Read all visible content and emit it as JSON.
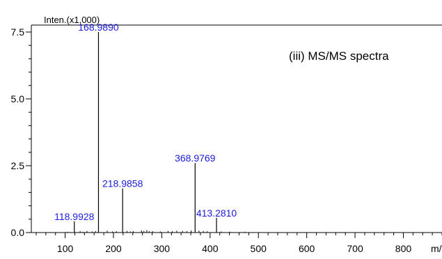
{
  "chart_data": {
    "type": "bar",
    "title": "(iii) MS/MS spectra",
    "ylabel": "Inten.(x1,000)",
    "xlabel": "m/z",
    "xlim": [
      30,
      880
    ],
    "ylim": [
      0,
      7.7
    ],
    "xticks": [
      100,
      200,
      300,
      400,
      500,
      600,
      700,
      800
    ],
    "yticks": [
      {
        "value": 0,
        "label": "0.0"
      },
      {
        "value": 2.5,
        "label": "2.5"
      },
      {
        "value": 5.0,
        "label": "5.0"
      },
      {
        "value": 7.5,
        "label": "7.5"
      }
    ],
    "peaks": [
      {
        "x": 118.9928,
        "y": 0.42,
        "label": "118.9928"
      },
      {
        "x": 168.989,
        "y": 7.5,
        "label": "168.9890"
      },
      {
        "x": 218.9858,
        "y": 1.65,
        "label": "218.9858"
      },
      {
        "x": 368.9769,
        "y": 2.6,
        "label": "368.9769"
      },
      {
        "x": 413.281,
        "y": 0.55,
        "label": "413.2810"
      }
    ],
    "minor_peaks": [
      {
        "x": 105,
        "y": 0.03
      },
      {
        "x": 131,
        "y": 0.05
      },
      {
        "x": 137,
        "y": 0.03
      },
      {
        "x": 145,
        "y": 0.06
      },
      {
        "x": 156,
        "y": 0.04
      },
      {
        "x": 163,
        "y": 0.05
      },
      {
        "x": 187,
        "y": 0.07
      },
      {
        "x": 198,
        "y": 0.04
      },
      {
        "x": 206,
        "y": 0.05
      },
      {
        "x": 228,
        "y": 0.06
      },
      {
        "x": 235,
        "y": 0.04
      },
      {
        "x": 241,
        "y": 0.05
      },
      {
        "x": 258,
        "y": 0.08
      },
      {
        "x": 263,
        "y": 0.06
      },
      {
        "x": 269,
        "y": 0.09
      },
      {
        "x": 274,
        "y": 0.05
      },
      {
        "x": 281,
        "y": 0.05
      },
      {
        "x": 297,
        "y": 0.04
      },
      {
        "x": 313,
        "y": 0.06
      },
      {
        "x": 322,
        "y": 0.05
      },
      {
        "x": 331,
        "y": 0.07
      },
      {
        "x": 343,
        "y": 0.06
      },
      {
        "x": 352,
        "y": 0.05
      },
      {
        "x": 361,
        "y": 0.08
      },
      {
        "x": 377,
        "y": 0.07
      },
      {
        "x": 386,
        "y": 0.06
      },
      {
        "x": 394,
        "y": 0.05
      },
      {
        "x": 423,
        "y": 0.04
      },
      {
        "x": 441,
        "y": 0.03
      },
      {
        "x": 472,
        "y": 0.03
      }
    ]
  }
}
